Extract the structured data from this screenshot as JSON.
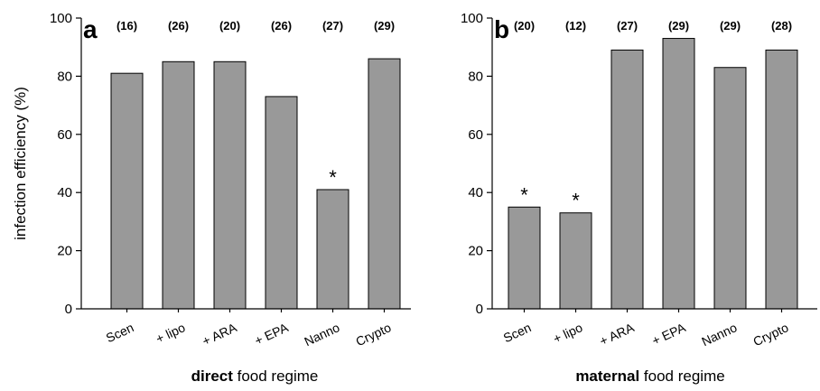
{
  "chart_data": [
    {
      "type": "bar",
      "panel_label": "a",
      "categories": [
        "Scen",
        "+ lipo",
        "+ ARA",
        "+ EPA",
        "Nanno",
        "Crypto"
      ],
      "values": [
        81,
        85,
        85,
        73,
        41,
        86
      ],
      "sample_sizes": [
        "(16)",
        "(26)",
        "(20)",
        "(26)",
        "(27)",
        "(29)"
      ],
      "significance": [
        "",
        "",
        "",
        "",
        "*",
        ""
      ],
      "ylabel": "infection efficiency (%)",
      "xlabel_bold": "direct",
      "xlabel_rest": " food regime",
      "ylim": [
        0,
        100
      ],
      "yticks": [
        "0",
        "20",
        "40",
        "60",
        "80",
        "100"
      ],
      "bar_color": "#999999"
    },
    {
      "type": "bar",
      "panel_label": "b",
      "categories": [
        "Scen",
        "+ lipo",
        "+ ARA",
        "+ EPA",
        "Nanno",
        "Crypto"
      ],
      "values": [
        35,
        33,
        89,
        93,
        83,
        89
      ],
      "sample_sizes": [
        "(20)",
        "(12)",
        "(27)",
        "(29)",
        "(29)",
        "(28)"
      ],
      "significance": [
        "*",
        "*",
        "",
        "",
        "",
        ""
      ],
      "ylabel": "",
      "xlabel_bold": "maternal",
      "xlabel_rest": " food regime",
      "ylim": [
        0,
        100
      ],
      "yticks": [
        "0",
        "20",
        "40",
        "60",
        "80",
        "100"
      ],
      "bar_color": "#999999"
    }
  ]
}
